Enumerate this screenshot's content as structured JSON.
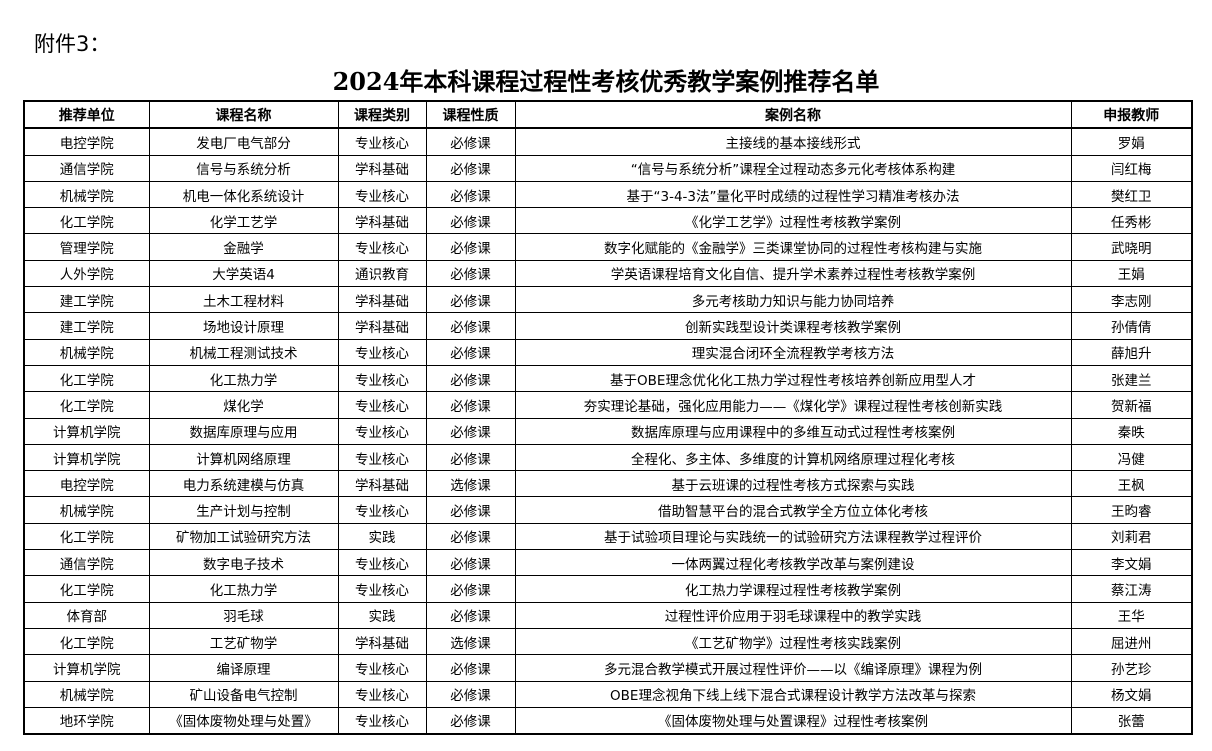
{
  "attachment_label": "附件3：",
  "title": "2024年本科课程过程性考核优秀教学案例推荐名单",
  "columns": [
    "推荐单位",
    "课程名称",
    "课程类别",
    "课程性质",
    "案例名称",
    "申报教师"
  ],
  "rows": [
    [
      "电控学院",
      "发电厂电气部分",
      "专业核心",
      "必修课",
      "主接线的基本接线形式",
      "罗娟"
    ],
    [
      "通信学院",
      "信号与系统分析",
      "学科基础",
      "必修课",
      "“信号与系统分析”课程全过程动态多元化考核体系构建",
      "闫红梅"
    ],
    [
      "机械学院",
      "机电一体化系统设计",
      "专业核心",
      "必修课",
      "基于“3-4-3法”量化平时成绩的过程性学习精准考核办法",
      "樊红卫"
    ],
    [
      "化工学院",
      "化学工艺学",
      "学科基础",
      "必修课",
      "《化学工艺学》过程性考核教学案例",
      "任秀彬"
    ],
    [
      "管理学院",
      "金融学",
      "专业核心",
      "必修课",
      "数字化赋能的《金融学》三类课堂协同的过程性考核构建与实施",
      "武晓明"
    ],
    [
      "人外学院",
      "大学英语4",
      "通识教育",
      "必修课",
      "学英语课程培育文化自信、提升学术素养过程性考核教学案例",
      "王娟"
    ],
    [
      "建工学院",
      "土木工程材料",
      "学科基础",
      "必修课",
      "多元考核助力知识与能力协同培养",
      "李志刚"
    ],
    [
      "建工学院",
      "场地设计原理",
      "学科基础",
      "必修课",
      "创新实践型设计类课程考核教学案例",
      "孙倩倩"
    ],
    [
      "机械学院",
      "机械工程测试技术",
      "专业核心",
      "必修课",
      "理实混合闭环全流程教学考核方法",
      "薛旭升"
    ],
    [
      "化工学院",
      "化工热力学",
      "专业核心",
      "必修课",
      "基于OBE理念优化化工热力学过程性考核培养创新应用型人才",
      "张建兰"
    ],
    [
      "化工学院",
      "煤化学",
      "专业核心",
      "必修课",
      "夯实理论基础，强化应用能力——《煤化学》课程过程性考核创新实践",
      "贺新福"
    ],
    [
      "计算机学院",
      "数据库原理与应用",
      "专业核心",
      "必修课",
      "数据库原理与应用课程中的多维互动式过程性考核案例",
      "秦昳"
    ],
    [
      "计算机学院",
      "计算机网络原理",
      "专业核心",
      "必修课",
      "全程化、多主体、多维度的计算机网络原理过程化考核",
      "冯健"
    ],
    [
      "电控学院",
      "电力系统建模与仿真",
      "学科基础",
      "选修课",
      "基于云班课的过程性考核方式探索与实践",
      "王枫"
    ],
    [
      "机械学院",
      "生产计划与控制",
      "专业核心",
      "必修课",
      "借助智慧平台的混合式教学全方位立体化考核",
      "王昀睿"
    ],
    [
      "化工学院",
      "矿物加工试验研究方法",
      "实践",
      "必修课",
      "基于试验项目理论与实践统一的试验研究方法课程教学过程评价",
      "刘莉君"
    ],
    [
      "通信学院",
      "数字电子技术",
      "专业核心",
      "必修课",
      "一体两翼过程化考核教学改革与案例建设",
      "李文娟"
    ],
    [
      "化工学院",
      "化工热力学",
      "专业核心",
      "必修课",
      "化工热力学课程过程性考核教学案例",
      "蔡江涛"
    ],
    [
      "体育部",
      "羽毛球",
      "实践",
      "必修课",
      "过程性评价应用于羽毛球课程中的教学实践",
      "王华"
    ],
    [
      "化工学院",
      "工艺矿物学",
      "学科基础",
      "选修课",
      "《工艺矿物学》过程性考核实践案例",
      "屈进州"
    ],
    [
      "计算机学院",
      "编译原理",
      "专业核心",
      "必修课",
      "多元混合教学模式开展过程性评价——以《编译原理》课程为例",
      "孙艺珍"
    ],
    [
      "机械学院",
      "矿山设备电气控制",
      "专业核心",
      "必修课",
      "OBE理念视角下线上线下混合式课程设计教学方法改革与探索",
      "杨文娟"
    ],
    [
      "地环学院",
      "《固体废物处理与处置》",
      "专业核心",
      "必修课",
      "《固体废物处理与处置课程》过程性考核案例",
      "张蕾"
    ]
  ]
}
